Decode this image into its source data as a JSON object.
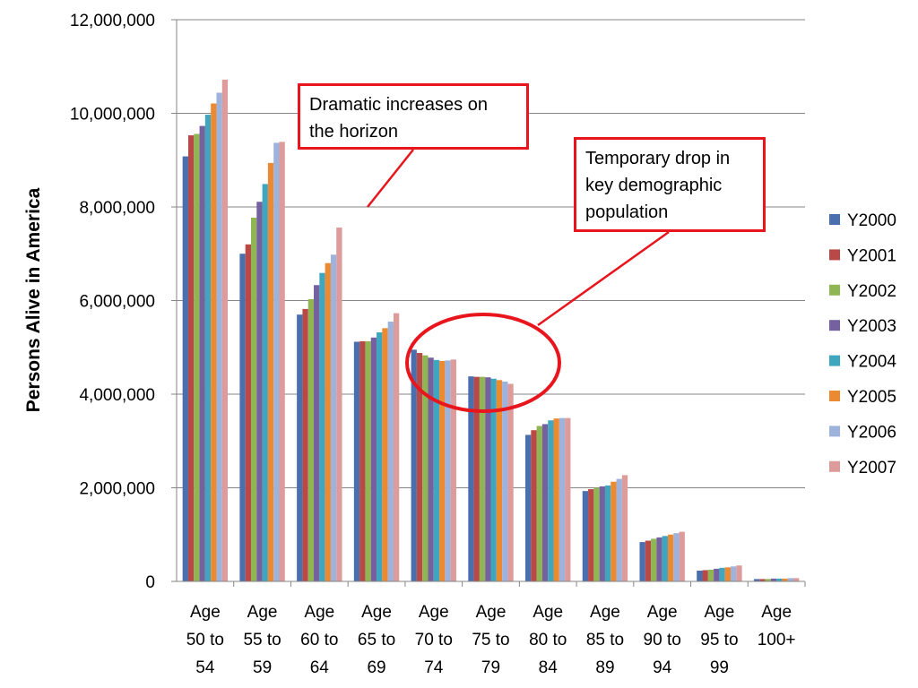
{
  "chart_data": {
    "type": "bar",
    "title": "",
    "xlabel": "",
    "ylabel": "Persons Alive in America",
    "ylim": [
      0,
      12000000
    ],
    "yticks": [
      "0",
      "2,000,000",
      "4,000,000",
      "6,000,000",
      "8,000,000",
      "10,000,000",
      "12,000,000"
    ],
    "grid": true,
    "legend_position": "right",
    "categories": [
      [
        "Age",
        "50 to",
        "54"
      ],
      [
        "Age",
        "55 to",
        "59"
      ],
      [
        "Age",
        "60 to",
        "64"
      ],
      [
        "Age",
        "65 to",
        "69"
      ],
      [
        "Age",
        "70 to",
        "74"
      ],
      [
        "Age",
        "75 to",
        "79"
      ],
      [
        "Age",
        "80 to",
        "84"
      ],
      [
        "Age",
        "85 to",
        "89"
      ],
      [
        "Age",
        "90 to",
        "94"
      ],
      [
        "Age",
        "95 to",
        "99"
      ],
      [
        "Age",
        "100+"
      ]
    ],
    "series": [
      {
        "name": "Y2000",
        "color": "#4a6faf",
        "values": [
          9080000,
          7000000,
          5700000,
          5120000,
          4950000,
          4380000,
          3130000,
          1930000,
          840000,
          230000,
          50000
        ]
      },
      {
        "name": "Y2001",
        "color": "#b84946",
        "values": [
          9530000,
          7200000,
          5820000,
          5130000,
          4880000,
          4370000,
          3230000,
          1970000,
          870000,
          240000,
          50000
        ]
      },
      {
        "name": "Y2002",
        "color": "#90b553",
        "values": [
          9560000,
          7770000,
          6030000,
          5130000,
          4830000,
          4370000,
          3320000,
          2000000,
          910000,
          250000,
          50000
        ]
      },
      {
        "name": "Y2003",
        "color": "#7561a0",
        "values": [
          9730000,
          8110000,
          6330000,
          5210000,
          4780000,
          4360000,
          3360000,
          2030000,
          940000,
          270000,
          60000
        ]
      },
      {
        "name": "Y2004",
        "color": "#3fa6c0",
        "values": [
          9970000,
          8490000,
          6590000,
          5320000,
          4730000,
          4330000,
          3440000,
          2050000,
          970000,
          290000,
          60000
        ]
      },
      {
        "name": "Y2005",
        "color": "#ec8a31",
        "values": [
          10210000,
          8940000,
          6800000,
          5410000,
          4710000,
          4300000,
          3480000,
          2130000,
          1000000,
          300000,
          60000
        ]
      },
      {
        "name": "Y2006",
        "color": "#9db3dc",
        "values": [
          10440000,
          9370000,
          6980000,
          5550000,
          4720000,
          4270000,
          3490000,
          2190000,
          1030000,
          320000,
          70000
        ]
      },
      {
        "name": "Y2007",
        "color": "#dd9b9b",
        "values": [
          10720000,
          9390000,
          7560000,
          5730000,
          4740000,
          4220000,
          3490000,
          2270000,
          1060000,
          340000,
          70000
        ]
      }
    ]
  },
  "annotations": {
    "callout_1": [
      "Dramatic increases on",
      "the horizon"
    ],
    "callout_2": [
      "Temporary drop in",
      "key demographic",
      "population"
    ]
  },
  "colors": {
    "callout_border": "#e8151d",
    "grid": "#868686"
  }
}
